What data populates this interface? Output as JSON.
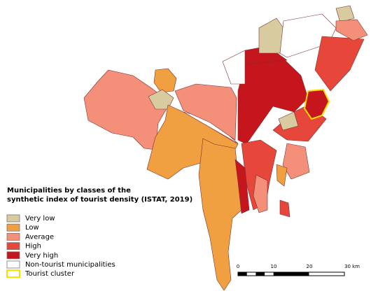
{
  "legend": {
    "title_lines": [
      "Municipalities by classes of the",
      "synthetic index of tourist density (ISTAT, 2019)"
    ],
    "items": [
      {
        "label": "Very low",
        "color": "#d8cba0"
      },
      {
        "label": "Low",
        "color": "#f0a040"
      },
      {
        "label": "Average",
        "color": "#f4907a"
      },
      {
        "label": "High",
        "color": "#e6473a"
      },
      {
        "label": "Very high",
        "color": "#c4161c"
      },
      {
        "label": "Non-tourist municipalities",
        "color": "#ffffff"
      },
      {
        "label": "Tourist cluster",
        "color": "#ffffff",
        "outline": "#f5e000"
      }
    ]
  },
  "scale_bar": {
    "labels": [
      "0",
      "10",
      "20",
      "30 km"
    ]
  }
}
